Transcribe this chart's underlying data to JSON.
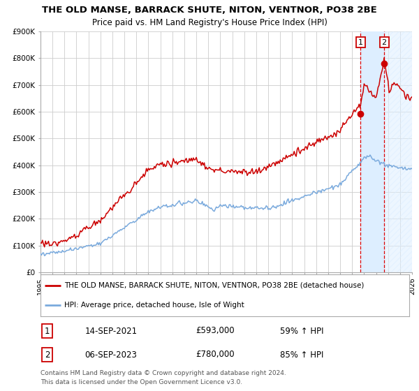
{
  "title": "THE OLD MANSE, BARRACK SHUTE, NITON, VENTNOR, PO38 2BE",
  "subtitle": "Price paid vs. HM Land Registry's House Price Index (HPI)",
  "x_start": 1995.0,
  "x_end": 2026.0,
  "y_min": 0,
  "y_max": 900000,
  "y_ticks": [
    0,
    100000,
    200000,
    300000,
    400000,
    500000,
    600000,
    700000,
    800000,
    900000
  ],
  "y_tick_labels": [
    "£0",
    "£100K",
    "£200K",
    "£300K",
    "£400K",
    "£500K",
    "£600K",
    "£700K",
    "£800K",
    "£900K"
  ],
  "x_ticks": [
    1995,
    1996,
    1997,
    1998,
    1999,
    2000,
    2001,
    2002,
    2003,
    2004,
    2005,
    2006,
    2007,
    2008,
    2009,
    2010,
    2011,
    2012,
    2013,
    2014,
    2015,
    2016,
    2017,
    2018,
    2019,
    2020,
    2021,
    2022,
    2023,
    2024,
    2025,
    2026
  ],
  "grid_color": "#cccccc",
  "background_color": "#ffffff",
  "plot_bg_color": "#ffffff",
  "red_line_color": "#cc0000",
  "blue_line_color": "#7aaadd",
  "shade_color": "#ddeeff",
  "dashed_vline_color": "#dd0000",
  "transaction1_x": 2021.71,
  "transaction1_y": 593000,
  "transaction2_x": 2023.68,
  "transaction2_y": 780000,
  "shade_x1": 2021.71,
  "shade_x2": 2023.68,
  "legend_red_label": "THE OLD MANSE, BARRACK SHUTE, NITON, VENTNOR, PO38 2BE (detached house)",
  "legend_blue_label": "HPI: Average price, detached house, Isle of Wight",
  "footnote1": "Contains HM Land Registry data © Crown copyright and database right 2024.",
  "footnote2": "This data is licensed under the Open Government Licence v3.0.",
  "table_row1_num": "1",
  "table_row1_date": "14-SEP-2021",
  "table_row1_price": "£593,000",
  "table_row1_hpi": "59% ↑ HPI",
  "table_row2_num": "2",
  "table_row2_date": "06-SEP-2023",
  "table_row2_price": "£780,000",
  "table_row2_hpi": "85% ↑ HPI",
  "title_fontsize": 9.5,
  "subtitle_fontsize": 8.5,
  "tick_fontsize": 7.5,
  "legend_fontsize": 7.5,
  "table_fontsize": 8.5,
  "footnote_fontsize": 6.5
}
